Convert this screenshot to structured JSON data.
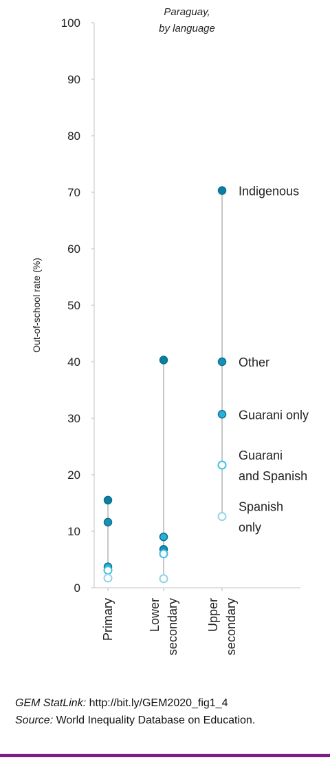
{
  "chart_data": {
    "type": "scatter",
    "subtitle_line1": "Paraguay,",
    "subtitle_line2": "by language",
    "ylabel": "Out-of-school rate (%)",
    "ylim": [
      0,
      100
    ],
    "yticks": [
      0,
      10,
      20,
      30,
      40,
      50,
      60,
      70,
      80,
      90,
      100
    ],
    "categories": [
      {
        "lines": [
          "Primary"
        ]
      },
      {
        "lines": [
          "Lower",
          "secondary"
        ]
      },
      {
        "lines": [
          "Upper",
          "secondary"
        ]
      }
    ],
    "series": [
      {
        "name": "Indigenous",
        "label_lines": [
          "Indigenous"
        ],
        "color": "#0a7fa0",
        "fill": true,
        "values": [
          15.5,
          40.3,
          70.3
        ]
      },
      {
        "name": "Other",
        "label_lines": [
          "Other"
        ],
        "color": "#1a90b8",
        "fill": true,
        "values": [
          11.6,
          6.8,
          40.0
        ]
      },
      {
        "name": "Guarani only",
        "label_lines": [
          "Guarani only"
        ],
        "color": "#2ab0d6",
        "fill": true,
        "values": [
          3.7,
          9.0,
          30.7
        ]
      },
      {
        "name": "Guarani and Spanish",
        "label_lines": [
          "Guarani",
          "and Spanish"
        ],
        "color": "#3cc0e0",
        "fill": false,
        "values": [
          3.1,
          6.0,
          21.7
        ]
      },
      {
        "name": "Spanish only",
        "label_lines": [
          "Spanish",
          "only"
        ],
        "color": "#8fd3ea",
        "fill": false,
        "values": [
          1.7,
          1.6,
          12.6
        ]
      }
    ]
  },
  "footer": {
    "statlink_label": "GEM StatLink:",
    "statlink_url": " http://bit.ly/GEM2020_fig1_4",
    "source_label": "Source:",
    "source_text": " World Inequality Database on Education."
  }
}
